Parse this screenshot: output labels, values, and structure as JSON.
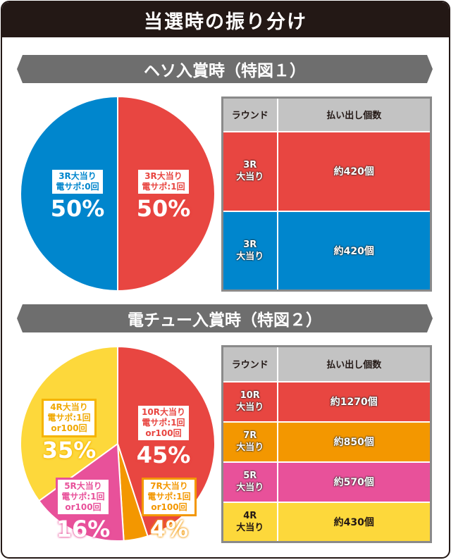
{
  "title": "当選時の振り分け",
  "sections": [
    {
      "title": "ヘソ入賞時（特図１）",
      "table": {
        "headers": [
          "ラウンド",
          "払い出し個数"
        ],
        "rows": [
          {
            "round": "3R\n大当り",
            "payout": "約420個",
            "color": "#e84641"
          },
          {
            "round": "3R\n大当り",
            "payout": "約420個",
            "color": "#0086cd"
          }
        ]
      }
    },
    {
      "title": "電チュー入賞時（特図２）",
      "table": {
        "headers": [
          "ラウンド",
          "払い出し個数"
        ],
        "rows": [
          {
            "round": "10R\n大当り",
            "payout": "約1270個",
            "color": "#e84641"
          },
          {
            "round": "7R\n大当り",
            "payout": "約850個",
            "color": "#f39700"
          },
          {
            "round": "5R\n大当り",
            "payout": "約570個",
            "color": "#e8519a"
          },
          {
            "round": "4R\n大当り",
            "payout": "約430個",
            "color": "#fdd83b"
          }
        ]
      }
    }
  ],
  "chart_data": [
    {
      "type": "pie",
      "slices": [
        {
          "label": "3R大当り\n電サポ:1回",
          "value": 50,
          "pct": "50%",
          "color": "#e84641"
        },
        {
          "label": "3R大当り\n電サポ:0回",
          "value": 50,
          "pct": "50%",
          "color": "#0086cd"
        }
      ]
    },
    {
      "type": "pie",
      "slices": [
        {
          "label": "10R大当り\n電サポ:1回\nor100回",
          "value": 45,
          "pct": "45%",
          "color": "#e84641"
        },
        {
          "label": "7R大当り\n電サポ:1回\nor100回",
          "value": 4,
          "pct": "4%",
          "color": "#f39700"
        },
        {
          "label": "5R大当り\n電サポ:1回\nor100回",
          "value": 16,
          "pct": "16%",
          "color": "#e8519a"
        },
        {
          "label": "4R大当り\n電サポ:1回\nor100回",
          "value": 35,
          "pct": "35%",
          "color": "#fdd83b"
        }
      ]
    }
  ]
}
